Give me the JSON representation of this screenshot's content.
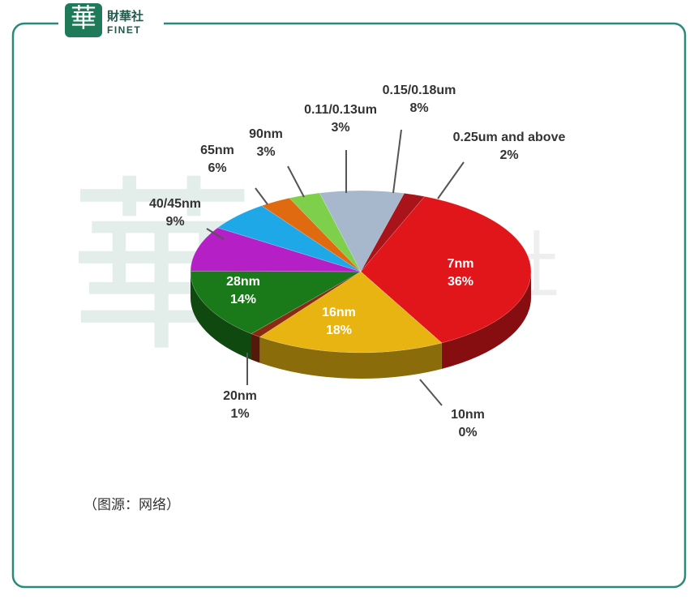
{
  "logo": {
    "mark": "華",
    "name": "財華社",
    "brand": "FINET"
  },
  "caption": "（图源：网络）",
  "chart_data": {
    "type": "pie",
    "categories": [
      "7nm",
      "10nm",
      "16nm",
      "20nm",
      "28nm",
      "40/45nm",
      "65nm",
      "90nm",
      "0.11/0.13um",
      "0.15/0.18um",
      "0.25um and above"
    ],
    "values": [
      36,
      0,
      18,
      1,
      14,
      9,
      6,
      3,
      3,
      8,
      2
    ],
    "value_labels": [
      "36%",
      "0%",
      "18%",
      "1%",
      "14%",
      "9%",
      "6%",
      "3%",
      "3%",
      "8%",
      "2%"
    ],
    "colors": [
      "#e0161b",
      "#7a1212",
      "#e8b412",
      "#8b2a10",
      "#1a7a1a",
      "#b41fc6",
      "#1ea8e8",
      "#e06a10",
      "#7ed04a",
      "#a8b8cc",
      "#a8141a"
    ]
  }
}
